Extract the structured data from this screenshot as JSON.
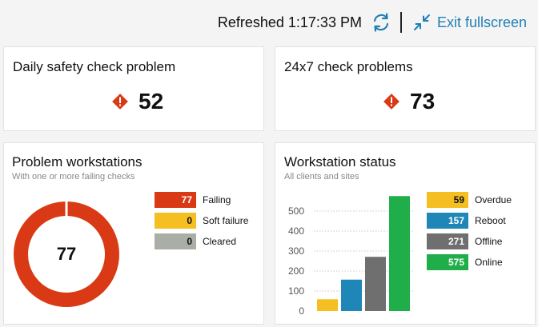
{
  "topbar": {
    "refreshed_text": "Refreshed 1:17:33 PM",
    "exit_label": "Exit fullscreen"
  },
  "cards": {
    "daily": {
      "title": "Daily safety check problem",
      "count": "52"
    },
    "check247": {
      "title": "24x7 check problems",
      "count": "73"
    },
    "workstations": {
      "title": "Problem workstations",
      "subtitle": "With one or more failing checks",
      "total": "77",
      "legend": [
        {
          "value": "77",
          "label": "Failing",
          "color": "#d93a15"
        },
        {
          "value": "0",
          "label": "Soft failure",
          "color": "#f5bf22"
        },
        {
          "value": "0",
          "label": "Cleared",
          "color": "#a9aea6"
        }
      ]
    },
    "status": {
      "title": "Workstation status",
      "subtitle": "All clients and sites",
      "legend": [
        {
          "value": "59",
          "label": "Overdue",
          "color": "#f5bf22"
        },
        {
          "value": "157",
          "label": "Reboot",
          "color": "#1f86b8"
        },
        {
          "value": "271",
          "label": "Offline",
          "color": "#6f6f6f"
        },
        {
          "value": "575",
          "label": "Online",
          "color": "#1fae49"
        }
      ]
    }
  },
  "chart_data": {
    "type": "bar",
    "categories": [
      "Overdue",
      "Reboot",
      "Offline",
      "Online"
    ],
    "values": [
      59,
      157,
      271,
      575
    ],
    "colors": [
      "#f5bf22",
      "#1f86b8",
      "#6f6f6f",
      "#1fae49"
    ],
    "ylim": [
      0,
      575
    ],
    "yticks": [
      "0",
      "100",
      "200",
      "300",
      "400",
      "500"
    ],
    "grid": "dotted horizontal"
  },
  "colors": {
    "accent": "#1f7fb4",
    "alert": "#d93a15"
  }
}
